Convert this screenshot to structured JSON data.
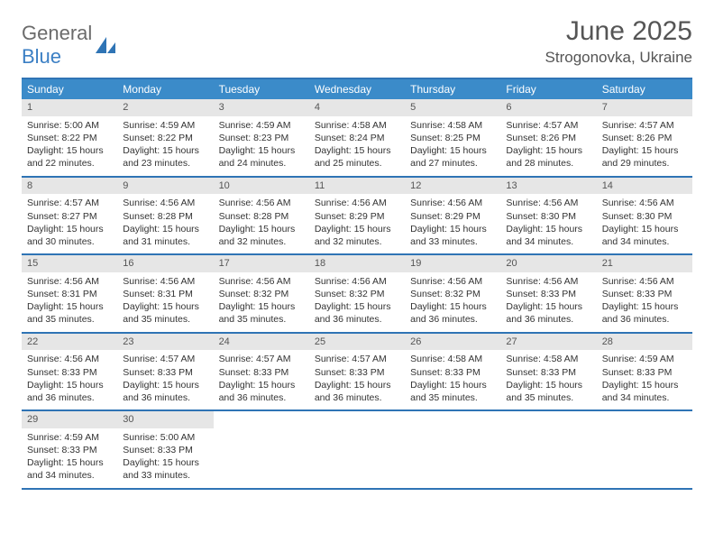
{
  "logo": {
    "word1": "General",
    "word2": "Blue"
  },
  "title": "June 2025",
  "location": "Strogonovka, Ukraine",
  "colors": {
    "header_bg": "#3b8bc9",
    "border": "#2f74b5",
    "daynum_bg": "#e6e6e6",
    "text": "#333333",
    "logo_gray": "#6b6b6b",
    "logo_blue": "#3b7fc4"
  },
  "weekdays": [
    "Sunday",
    "Monday",
    "Tuesday",
    "Wednesday",
    "Thursday",
    "Friday",
    "Saturday"
  ],
  "weeks": [
    [
      {
        "n": "1",
        "sr": "Sunrise: 5:00 AM",
        "ss": "Sunset: 8:22 PM",
        "dl": "Daylight: 15 hours and 22 minutes."
      },
      {
        "n": "2",
        "sr": "Sunrise: 4:59 AM",
        "ss": "Sunset: 8:22 PM",
        "dl": "Daylight: 15 hours and 23 minutes."
      },
      {
        "n": "3",
        "sr": "Sunrise: 4:59 AM",
        "ss": "Sunset: 8:23 PM",
        "dl": "Daylight: 15 hours and 24 minutes."
      },
      {
        "n": "4",
        "sr": "Sunrise: 4:58 AM",
        "ss": "Sunset: 8:24 PM",
        "dl": "Daylight: 15 hours and 25 minutes."
      },
      {
        "n": "5",
        "sr": "Sunrise: 4:58 AM",
        "ss": "Sunset: 8:25 PM",
        "dl": "Daylight: 15 hours and 27 minutes."
      },
      {
        "n": "6",
        "sr": "Sunrise: 4:57 AM",
        "ss": "Sunset: 8:26 PM",
        "dl": "Daylight: 15 hours and 28 minutes."
      },
      {
        "n": "7",
        "sr": "Sunrise: 4:57 AM",
        "ss": "Sunset: 8:26 PM",
        "dl": "Daylight: 15 hours and 29 minutes."
      }
    ],
    [
      {
        "n": "8",
        "sr": "Sunrise: 4:57 AM",
        "ss": "Sunset: 8:27 PM",
        "dl": "Daylight: 15 hours and 30 minutes."
      },
      {
        "n": "9",
        "sr": "Sunrise: 4:56 AM",
        "ss": "Sunset: 8:28 PM",
        "dl": "Daylight: 15 hours and 31 minutes."
      },
      {
        "n": "10",
        "sr": "Sunrise: 4:56 AM",
        "ss": "Sunset: 8:28 PM",
        "dl": "Daylight: 15 hours and 32 minutes."
      },
      {
        "n": "11",
        "sr": "Sunrise: 4:56 AM",
        "ss": "Sunset: 8:29 PM",
        "dl": "Daylight: 15 hours and 32 minutes."
      },
      {
        "n": "12",
        "sr": "Sunrise: 4:56 AM",
        "ss": "Sunset: 8:29 PM",
        "dl": "Daylight: 15 hours and 33 minutes."
      },
      {
        "n": "13",
        "sr": "Sunrise: 4:56 AM",
        "ss": "Sunset: 8:30 PM",
        "dl": "Daylight: 15 hours and 34 minutes."
      },
      {
        "n": "14",
        "sr": "Sunrise: 4:56 AM",
        "ss": "Sunset: 8:30 PM",
        "dl": "Daylight: 15 hours and 34 minutes."
      }
    ],
    [
      {
        "n": "15",
        "sr": "Sunrise: 4:56 AM",
        "ss": "Sunset: 8:31 PM",
        "dl": "Daylight: 15 hours and 35 minutes."
      },
      {
        "n": "16",
        "sr": "Sunrise: 4:56 AM",
        "ss": "Sunset: 8:31 PM",
        "dl": "Daylight: 15 hours and 35 minutes."
      },
      {
        "n": "17",
        "sr": "Sunrise: 4:56 AM",
        "ss": "Sunset: 8:32 PM",
        "dl": "Daylight: 15 hours and 35 minutes."
      },
      {
        "n": "18",
        "sr": "Sunrise: 4:56 AM",
        "ss": "Sunset: 8:32 PM",
        "dl": "Daylight: 15 hours and 36 minutes."
      },
      {
        "n": "19",
        "sr": "Sunrise: 4:56 AM",
        "ss": "Sunset: 8:32 PM",
        "dl": "Daylight: 15 hours and 36 minutes."
      },
      {
        "n": "20",
        "sr": "Sunrise: 4:56 AM",
        "ss": "Sunset: 8:33 PM",
        "dl": "Daylight: 15 hours and 36 minutes."
      },
      {
        "n": "21",
        "sr": "Sunrise: 4:56 AM",
        "ss": "Sunset: 8:33 PM",
        "dl": "Daylight: 15 hours and 36 minutes."
      }
    ],
    [
      {
        "n": "22",
        "sr": "Sunrise: 4:56 AM",
        "ss": "Sunset: 8:33 PM",
        "dl": "Daylight: 15 hours and 36 minutes."
      },
      {
        "n": "23",
        "sr": "Sunrise: 4:57 AM",
        "ss": "Sunset: 8:33 PM",
        "dl": "Daylight: 15 hours and 36 minutes."
      },
      {
        "n": "24",
        "sr": "Sunrise: 4:57 AM",
        "ss": "Sunset: 8:33 PM",
        "dl": "Daylight: 15 hours and 36 minutes."
      },
      {
        "n": "25",
        "sr": "Sunrise: 4:57 AM",
        "ss": "Sunset: 8:33 PM",
        "dl": "Daylight: 15 hours and 36 minutes."
      },
      {
        "n": "26",
        "sr": "Sunrise: 4:58 AM",
        "ss": "Sunset: 8:33 PM",
        "dl": "Daylight: 15 hours and 35 minutes."
      },
      {
        "n": "27",
        "sr": "Sunrise: 4:58 AM",
        "ss": "Sunset: 8:33 PM",
        "dl": "Daylight: 15 hours and 35 minutes."
      },
      {
        "n": "28",
        "sr": "Sunrise: 4:59 AM",
        "ss": "Sunset: 8:33 PM",
        "dl": "Daylight: 15 hours and 34 minutes."
      }
    ],
    [
      {
        "n": "29",
        "sr": "Sunrise: 4:59 AM",
        "ss": "Sunset: 8:33 PM",
        "dl": "Daylight: 15 hours and 34 minutes."
      },
      {
        "n": "30",
        "sr": "Sunrise: 5:00 AM",
        "ss": "Sunset: 8:33 PM",
        "dl": "Daylight: 15 hours and 33 minutes."
      },
      null,
      null,
      null,
      null,
      null
    ]
  ]
}
